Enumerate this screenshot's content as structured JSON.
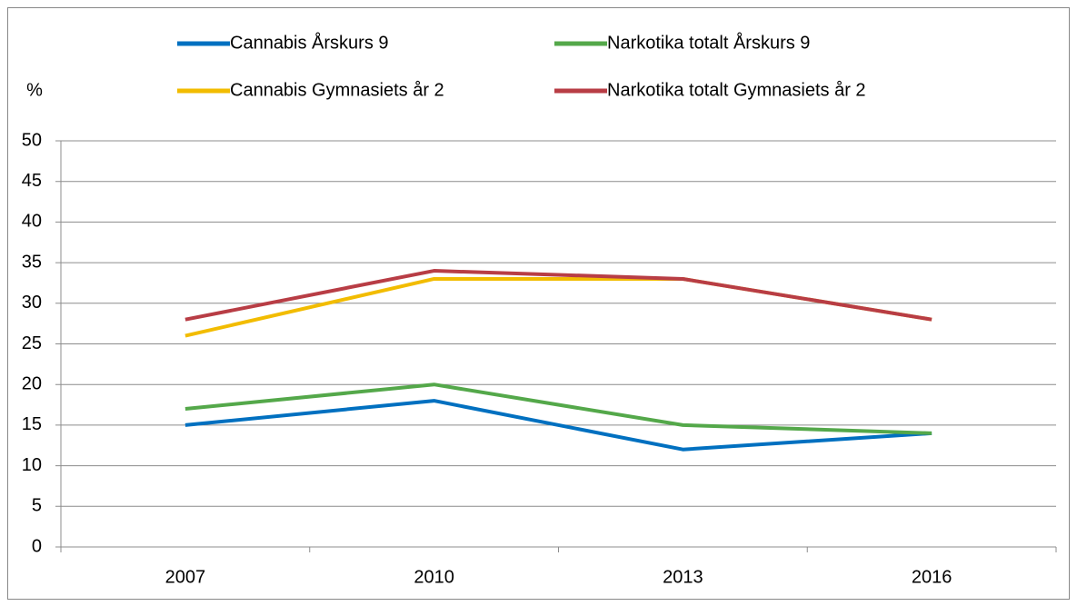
{
  "chart_data": {
    "type": "line",
    "y_label": "%",
    "categories": [
      "2007",
      "2010",
      "2013",
      "2016"
    ],
    "series": [
      {
        "name": "Cannabis Årskurs 9",
        "color": "#0070c0",
        "values": [
          15,
          18,
          12,
          14
        ]
      },
      {
        "name": "Narkotika totalt Årskurs 9",
        "color": "#54a84a",
        "values": [
          17,
          20,
          15,
          14
        ]
      },
      {
        "name": "Cannabis Gymnasiets år 2",
        "color": "#f2bc00",
        "values": [
          26,
          33,
          33,
          28
        ]
      },
      {
        "name": "Narkotika totalt Gymnasiets år 2",
        "color": "#b83d45",
        "values": [
          28,
          34,
          33,
          28
        ]
      }
    ],
    "ylim": [
      0,
      50
    ],
    "yticks": [
      0,
      5,
      10,
      15,
      20,
      25,
      30,
      35,
      40,
      45,
      50
    ],
    "grid": true
  }
}
